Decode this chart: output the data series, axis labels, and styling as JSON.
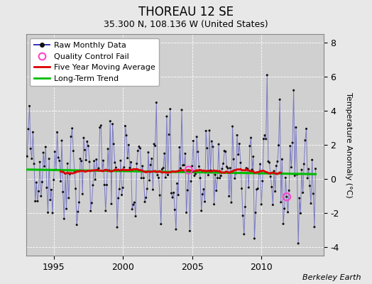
{
  "title": "THOREAU 12 SE",
  "subtitle": "35.300 N, 108.136 W (United States)",
  "ylabel": "Temperature Anomaly (°C)",
  "credit": "Berkeley Earth",
  "ylim": [
    -4.5,
    8.5
  ],
  "xlim": [
    1993.0,
    2014.5
  ],
  "xticks": [
    1995,
    2000,
    2005,
    2010
  ],
  "yticks": [
    -4,
    -2,
    0,
    2,
    4,
    6,
    8
  ],
  "bg_color": "#e8e8e8",
  "plot_bg_color": "#d0d0d0",
  "raw_color": "#3333bb",
  "raw_alpha": 0.55,
  "dot_color": "#111111",
  "moving_avg_color": "#dd0000",
  "trend_color": "#00bb00",
  "qc_fail_color": "#ff44cc",
  "start_year": 1993,
  "n_months": 252,
  "seed": 42,
  "title_fontsize": 12,
  "subtitle_fontsize": 9,
  "tick_fontsize": 9,
  "ylabel_fontsize": 8,
  "legend_fontsize": 8,
  "credit_fontsize": 8
}
